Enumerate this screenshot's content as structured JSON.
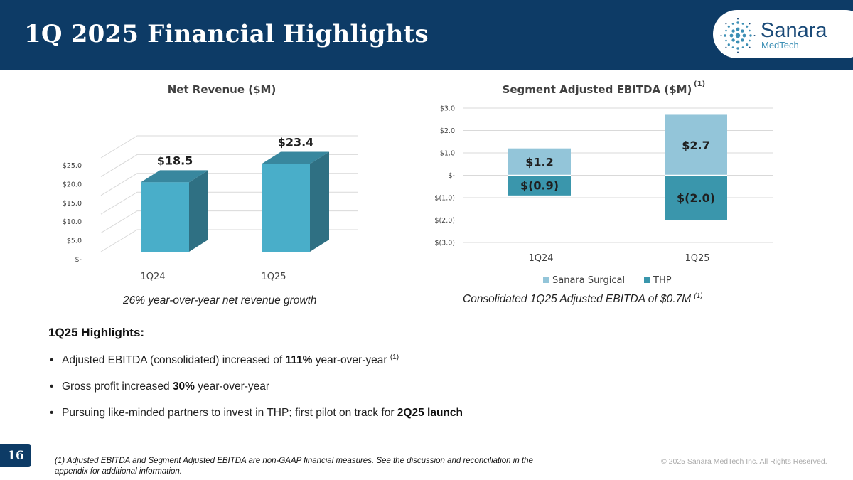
{
  "header": {
    "title": "1Q 2025 Financial Highlights"
  },
  "logo": {
    "name": "Sanara",
    "sub": "MedTech"
  },
  "chart_data": [
    {
      "type": "bar",
      "title": "Net Revenue ($M)",
      "categories": [
        "1Q24",
        "1Q25"
      ],
      "values": [
        18.5,
        23.4
      ],
      "value_labels": [
        "$18.5",
        "$23.4"
      ],
      "yticks": [
        0,
        5,
        10,
        15,
        20,
        25
      ],
      "ytick_labels": [
        "$-",
        "$5.0",
        "$10.0",
        "$15.0",
        "$20.0",
        "$25.0"
      ],
      "ylim": [
        0,
        25
      ],
      "grid": true,
      "style": "3d",
      "colors": {
        "front": "#49aec9",
        "side": "#2f7083",
        "top": "#38879e"
      }
    },
    {
      "type": "bar",
      "stacked": true,
      "title": "Segment Adjusted EBITDA ($M)",
      "title_note": "(1)",
      "categories": [
        "1Q24",
        "1Q25"
      ],
      "series": [
        {
          "name": "Sanara Surgical",
          "values": [
            1.2,
            2.7
          ],
          "labels": [
            "$1.2",
            "$2.7"
          ],
          "color": "#93c5d9"
        },
        {
          "name": "THP",
          "values": [
            -0.9,
            -2.0
          ],
          "labels": [
            "$(0.9)",
            "$(2.0)"
          ],
          "color": "#3a96ac"
        }
      ],
      "yticks": [
        3,
        2,
        1,
        0,
        -1,
        -2,
        -3
      ],
      "ytick_labels": [
        "$3.0",
        "$2.0",
        "$1.0",
        "$-",
        "$(1.0)",
        "$(2.0)",
        "$(3.0)"
      ],
      "ylim": [
        -3,
        3
      ],
      "grid": true,
      "legend": "bottom"
    }
  ],
  "captions": {
    "left": "26% year-over-year net revenue growth",
    "right": "Consolidated 1Q25 Adjusted EBITDA of $0.7M",
    "right_note": "(1)"
  },
  "highlights": {
    "title": "1Q25 Highlights:",
    "bullets": [
      {
        "pre": "Adjusted EBITDA (consolidated) increased of ",
        "bold": "111%",
        "post": " year-over-year ",
        "note": "(1)"
      },
      {
        "pre": "Gross profit increased ",
        "bold": "30%",
        "post": " year-over-year",
        "note": ""
      },
      {
        "pre": "Pursuing like-minded partners to invest in THP; first pilot on track for ",
        "bold": "2Q25 launch",
        "post": "",
        "note": ""
      }
    ]
  },
  "footer": {
    "page_number": "16",
    "footnote": "(1) Adjusted EBITDA and Segment Adjusted EBITDA are non-GAAP financial measures. See the discussion and reconciliation in the appendix for additional information.",
    "copyright": "© 2025 Sanara MedTech Inc. All Rights Reserved."
  }
}
